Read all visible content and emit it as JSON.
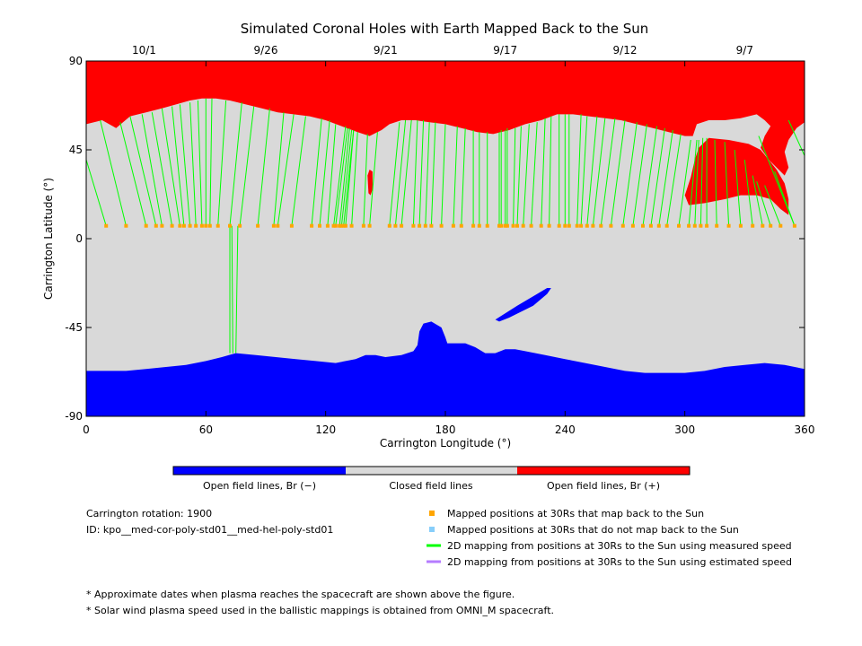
{
  "chart_data": {
    "type": "map",
    "title": "Simulated Coronal Holes with Earth Mapped Back to the Sun",
    "xlabel": "Carrington Longitude (°)",
    "ylabel": "Carrington Latitude (°)",
    "xlim": [
      0,
      360
    ],
    "ylim": [
      -90,
      90
    ],
    "x_ticks": [
      "0",
      "60",
      "120",
      "180",
      "240",
      "300",
      "360"
    ],
    "y_ticks": [
      "90",
      "45",
      "0",
      "-45",
      "-90"
    ],
    "date_ticks": [
      {
        "label": "10/1",
        "lon": 29
      },
      {
        "label": "9/26",
        "lon": 90
      },
      {
        "label": "9/21",
        "lon": 150
      },
      {
        "label": "9/17",
        "lon": 210
      },
      {
        "label": "9/12",
        "lon": 270
      },
      {
        "label": "9/7",
        "lon": 330
      }
    ],
    "colors": {
      "open_negative": "#0000ff",
      "closed": "#d9d9d9",
      "open_positive": "#ff0000",
      "mapped_point": "#ffa500",
      "unmapped_point": "#87cefa",
      "measured_line": "#00ff00",
      "estimated_line": "#b57cff"
    },
    "regions": {
      "north_hole_boundary": [
        [
          0,
          58
        ],
        [
          8,
          60
        ],
        [
          15,
          56
        ],
        [
          22,
          62
        ],
        [
          30,
          64
        ],
        [
          38,
          66
        ],
        [
          45,
          68
        ],
        [
          52,
          70
        ],
        [
          58,
          71
        ],
        [
          65,
          71
        ],
        [
          72,
          70
        ],
        [
          80,
          68
        ],
        [
          88,
          66
        ],
        [
          96,
          64
        ],
        [
          104,
          63
        ],
        [
          112,
          62
        ],
        [
          120,
          60
        ],
        [
          128,
          57
        ],
        [
          136,
          54
        ],
        [
          142,
          52
        ],
        [
          148,
          55
        ],
        [
          152,
          58
        ],
        [
          158,
          60
        ],
        [
          165,
          60
        ],
        [
          172,
          59
        ],
        [
          180,
          58
        ],
        [
          188,
          56
        ],
        [
          196,
          54
        ],
        [
          204,
          53
        ],
        [
          212,
          55
        ],
        [
          220,
          58
        ],
        [
          228,
          60
        ],
        [
          236,
          63
        ],
        [
          244,
          63
        ],
        [
          252,
          62
        ],
        [
          260,
          61
        ],
        [
          268,
          60
        ],
        [
          276,
          58
        ],
        [
          284,
          56
        ],
        [
          292,
          54
        ],
        [
          300,
          52
        ],
        [
          304,
          52
        ],
        [
          306,
          58
        ],
        [
          312,
          60
        ],
        [
          320,
          60
        ],
        [
          328,
          61
        ],
        [
          336,
          63
        ],
        [
          340,
          60
        ],
        [
          343,
          57
        ],
        [
          340,
          52
        ],
        [
          338,
          46
        ],
        [
          342,
          40
        ],
        [
          346,
          36
        ],
        [
          350,
          32
        ],
        [
          352,
          36
        ],
        [
          350,
          44
        ],
        [
          352,
          50
        ],
        [
          356,
          56
        ],
        [
          360,
          59
        ]
      ],
      "north_hole_lobe": [
        [
          305,
          40
        ],
        [
          303,
          31
        ],
        [
          300,
          22
        ],
        [
          302,
          17
        ],
        [
          310,
          18
        ],
        [
          320,
          20
        ],
        [
          328,
          22
        ],
        [
          336,
          22
        ],
        [
          343,
          20
        ],
        [
          348,
          15
        ],
        [
          352,
          12
        ],
        [
          352,
          20
        ],
        [
          350,
          28
        ],
        [
          346,
          35
        ],
        [
          342,
          40
        ],
        [
          338,
          45
        ],
        [
          332,
          48
        ],
        [
          322,
          50
        ],
        [
          312,
          51
        ],
        [
          307,
          46
        ]
      ],
      "north_hole_island": [
        [
          141.5,
          23
        ],
        [
          141,
          32
        ],
        [
          142,
          35
        ],
        [
          143.5,
          34
        ],
        [
          143.5,
          25
        ],
        [
          142.5,
          22
        ]
      ],
      "south_hole_boundary": [
        [
          0,
          -67
        ],
        [
          10,
          -67
        ],
        [
          20,
          -67
        ],
        [
          30,
          -66
        ],
        [
          40,
          -65
        ],
        [
          50,
          -64
        ],
        [
          60,
          -62
        ],
        [
          68,
          -60
        ],
        [
          75,
          -58
        ],
        [
          85,
          -59
        ],
        [
          95,
          -60
        ],
        [
          105,
          -61
        ],
        [
          115,
          -62
        ],
        [
          125,
          -63
        ],
        [
          135,
          -61
        ],
        [
          140,
          -59
        ],
        [
          145,
          -59
        ],
        [
          150,
          -60
        ],
        [
          158,
          -59
        ],
        [
          164,
          -57
        ],
        [
          166,
          -54
        ],
        [
          167,
          -47
        ],
        [
          169,
          -43
        ],
        [
          173,
          -42
        ],
        [
          178,
          -45
        ],
        [
          180,
          -50
        ],
        [
          181,
          -53
        ],
        [
          186,
          -53
        ],
        [
          190,
          -53
        ],
        [
          195,
          -55
        ],
        [
          200,
          -58
        ],
        [
          205,
          -58
        ],
        [
          210,
          -56
        ],
        [
          215,
          -56
        ],
        [
          220,
          -57
        ],
        [
          230,
          -59
        ],
        [
          240,
          -61
        ],
        [
          250,
          -63
        ],
        [
          260,
          -65
        ],
        [
          270,
          -67
        ],
        [
          280,
          -68
        ],
        [
          290,
          -68
        ],
        [
          300,
          -68
        ],
        [
          310,
          -67
        ],
        [
          320,
          -65
        ],
        [
          330,
          -64
        ],
        [
          340,
          -63
        ],
        [
          350,
          -64
        ],
        [
          360,
          -66
        ]
      ],
      "south_hole_streak": [
        [
          205,
          -41
        ],
        [
          216,
          -34
        ],
        [
          226,
          -28
        ],
        [
          231,
          -25
        ],
        [
          233,
          -25
        ],
        [
          231,
          -28
        ],
        [
          224,
          -34
        ],
        [
          212,
          -40
        ],
        [
          207,
          -42
        ]
      ]
    },
    "footpoint_lat": 6.5,
    "footpoints_lon": [
      10,
      20,
      30,
      35,
      38,
      43,
      47,
      49,
      52,
      55,
      58,
      60,
      62,
      66,
      72,
      77,
      86,
      94,
      96,
      103,
      113,
      117,
      121,
      124,
      125,
      127,
      128,
      129,
      130,
      133,
      139,
      142,
      152,
      155,
      158,
      164,
      167,
      170,
      173,
      178,
      184,
      188,
      194,
      197,
      201,
      207,
      208,
      210,
      211,
      214,
      216,
      219,
      223,
      228,
      232,
      237,
      240,
      242,
      246,
      248,
      251,
      254,
      258,
      263,
      269,
      274,
      279,
      283,
      287,
      291,
      297,
      302,
      305,
      308,
      311,
      316,
      322,
      328,
      334,
      339,
      343,
      348,
      355
    ],
    "measured_lines": [
      {
        "x0": 10,
        "y0": 6.5,
        "x1": 0,
        "y1": 40
      },
      {
        "x0": 20,
        "y0": 6.5,
        "x1": 7,
        "y1": 60
      },
      {
        "x0": 30,
        "y0": 6.5,
        "x1": 17,
        "y1": 59
      },
      {
        "x0": 35,
        "y0": 6.5,
        "x1": 22,
        "y1": 62
      },
      {
        "x0": 38,
        "y0": 6.5,
        "x1": 28,
        "y1": 63
      },
      {
        "x0": 43,
        "y0": 6.5,
        "x1": 33,
        "y1": 64
      },
      {
        "x0": 47,
        "y0": 6.5,
        "x1": 38,
        "y1": 66
      },
      {
        "x0": 49,
        "y0": 6.5,
        "x1": 43,
        "y1": 67
      },
      {
        "x0": 52,
        "y0": 6.5,
        "x1": 47,
        "y1": 68
      },
      {
        "x0": 55,
        "y0": 6.5,
        "x1": 52,
        "y1": 69
      },
      {
        "x0": 58,
        "y0": 6.5,
        "x1": 56,
        "y1": 70
      },
      {
        "x0": 60,
        "y0": 6.5,
        "x1": 60,
        "y1": 71
      },
      {
        "x0": 62,
        "y0": 6.5,
        "x1": 63,
        "y1": 71
      },
      {
        "x0": 66,
        "y0": 6.5,
        "x1": 70,
        "y1": 70
      },
      {
        "x0": 72,
        "y0": 6.5,
        "x1": 78,
        "y1": 69
      },
      {
        "x0": 77,
        "y0": 6.5,
        "x1": 84,
        "y1": 67
      },
      {
        "x0": 86,
        "y0": 6.5,
        "x1": 92,
        "y1": 66
      },
      {
        "x0": 94,
        "y0": 6.5,
        "x1": 99,
        "y1": 64
      },
      {
        "x0": 96,
        "y0": 6.5,
        "x1": 104,
        "y1": 63
      },
      {
        "x0": 103,
        "y0": 6.5,
        "x1": 110,
        "y1": 62
      },
      {
        "x0": 113,
        "y0": 6.5,
        "x1": 118,
        "y1": 61
      },
      {
        "x0": 117,
        "y0": 6.5,
        "x1": 122,
        "y1": 60
      },
      {
        "x0": 121,
        "y0": 6.5,
        "x1": 125,
        "y1": 58
      },
      {
        "x0": 124,
        "y0": 6.5,
        "x1": 130,
        "y1": 57
      },
      {
        "x0": 125,
        "y0": 6.5,
        "x1": 131,
        "y1": 56
      },
      {
        "x0": 127,
        "y0": 6.5,
        "x1": 132,
        "y1": 56
      },
      {
        "x0": 128,
        "y0": 6.5,
        "x1": 133,
        "y1": 55
      },
      {
        "x0": 129,
        "y0": 6.5,
        "x1": 134,
        "y1": 55
      },
      {
        "x0": 130,
        "y0": 6.5,
        "x1": 134,
        "y1": 55
      },
      {
        "x0": 133,
        "y0": 6.5,
        "x1": 136,
        "y1": 54
      },
      {
        "x0": 139,
        "y0": 6.5,
        "x1": 141,
        "y1": 53
      },
      {
        "x0": 142,
        "y0": 6.5,
        "x1": 146,
        "y1": 54
      },
      {
        "x0": 152,
        "y0": 6.5,
        "x1": 157,
        "y1": 59
      },
      {
        "x0": 155,
        "y0": 6.5,
        "x1": 160,
        "y1": 60
      },
      {
        "x0": 158,
        "y0": 6.5,
        "x1": 163,
        "y1": 60
      },
      {
        "x0": 164,
        "y0": 6.5,
        "x1": 166,
        "y1": 60
      },
      {
        "x0": 167,
        "y0": 6.5,
        "x1": 169,
        "y1": 60
      },
      {
        "x0": 170,
        "y0": 6.5,
        "x1": 172,
        "y1": 59
      },
      {
        "x0": 173,
        "y0": 6.5,
        "x1": 175,
        "y1": 59
      },
      {
        "x0": 178,
        "y0": 6.5,
        "x1": 180,
        "y1": 58
      },
      {
        "x0": 184,
        "y0": 6.5,
        "x1": 186,
        "y1": 57
      },
      {
        "x0": 188,
        "y0": 6.5,
        "x1": 190,
        "y1": 56
      },
      {
        "x0": 194,
        "y0": 6.5,
        "x1": 194,
        "y1": 55
      },
      {
        "x0": 197,
        "y0": 6.5,
        "x1": 197,
        "y1": 54
      },
      {
        "x0": 201,
        "y0": 6.5,
        "x1": 201,
        "y1": 54
      },
      {
        "x0": 207,
        "y0": 6.5,
        "x1": 207,
        "y1": 54
      },
      {
        "x0": 208,
        "y0": 6.5,
        "x1": 208,
        "y1": 55
      },
      {
        "x0": 210,
        "y0": 6.5,
        "x1": 210,
        "y1": 55
      },
      {
        "x0": 211,
        "y0": 6.5,
        "x1": 211,
        "y1": 56
      },
      {
        "x0": 214,
        "y0": 6.5,
        "x1": 215,
        "y1": 56
      },
      {
        "x0": 216,
        "y0": 6.5,
        "x1": 218,
        "y1": 57
      },
      {
        "x0": 219,
        "y0": 6.5,
        "x1": 222,
        "y1": 58
      },
      {
        "x0": 223,
        "y0": 6.5,
        "x1": 226,
        "y1": 59
      },
      {
        "x0": 228,
        "y0": 6.5,
        "x1": 230,
        "y1": 61
      },
      {
        "x0": 232,
        "y0": 6.5,
        "x1": 233,
        "y1": 62
      },
      {
        "x0": 237,
        "y0": 6.5,
        "x1": 237,
        "y1": 63
      },
      {
        "x0": 240,
        "y0": 6.5,
        "x1": 240,
        "y1": 63
      },
      {
        "x0": 242,
        "y0": 6.5,
        "x1": 242,
        "y1": 63
      },
      {
        "x0": 246,
        "y0": 6.5,
        "x1": 248,
        "y1": 63
      },
      {
        "x0": 248,
        "y0": 6.5,
        "x1": 251,
        "y1": 62
      },
      {
        "x0": 251,
        "y0": 6.5,
        "x1": 256,
        "y1": 62
      },
      {
        "x0": 254,
        "y0": 6.5,
        "x1": 260,
        "y1": 61
      },
      {
        "x0": 258,
        "y0": 6.5,
        "x1": 265,
        "y1": 61
      },
      {
        "x0": 263,
        "y0": 6.5,
        "x1": 270,
        "y1": 60
      },
      {
        "x0": 269,
        "y0": 6.5,
        "x1": 276,
        "y1": 59
      },
      {
        "x0": 274,
        "y0": 6.5,
        "x1": 281,
        "y1": 58
      },
      {
        "x0": 279,
        "y0": 6.5,
        "x1": 286,
        "y1": 57
      },
      {
        "x0": 283,
        "y0": 6.5,
        "x1": 290,
        "y1": 56
      },
      {
        "x0": 287,
        "y0": 6.5,
        "x1": 294,
        "y1": 55
      },
      {
        "x0": 291,
        "y0": 6.5,
        "x1": 298,
        "y1": 53
      },
      {
        "x0": 297,
        "y0": 6.5,
        "x1": 303,
        "y1": 50
      },
      {
        "x0": 302,
        "y0": 6.5,
        "x1": 306,
        "y1": 50
      },
      {
        "x0": 305,
        "y0": 6.5,
        "x1": 307,
        "y1": 50
      },
      {
        "x0": 308,
        "y0": 6.5,
        "x1": 309,
        "y1": 51
      },
      {
        "x0": 311,
        "y0": 6.5,
        "x1": 311,
        "y1": 51
      },
      {
        "x0": 316,
        "y0": 6.5,
        "x1": 315,
        "y1": 50
      },
      {
        "x0": 322,
        "y0": 6.5,
        "x1": 320,
        "y1": 49
      },
      {
        "x0": 328,
        "y0": 6.5,
        "x1": 325,
        "y1": 45
      },
      {
        "x0": 334,
        "y0": 6.5,
        "x1": 330,
        "y1": 40
      },
      {
        "x0": 339,
        "y0": 6.5,
        "x1": 334,
        "y1": 32
      },
      {
        "x0": 343,
        "y0": 6.5,
        "x1": 336,
        "y1": 29
      },
      {
        "x0": 348,
        "y0": 6.5,
        "x1": 340,
        "y1": 27
      },
      {
        "x0": 355,
        "y0": 6.5,
        "x1": 345,
        "y1": 34
      },
      {
        "x0": 355,
        "y0": 6.5,
        "x1": 337,
        "y1": 52
      },
      {
        "x0": 360,
        "y0": 42,
        "x1": 352,
        "y1": 60
      },
      {
        "x0": 72,
        "y0": 6.5,
        "x1": 72,
        "y1": -58
      },
      {
        "x0": 73,
        "y0": 6.5,
        "x1": 73.5,
        "y1": -58
      },
      {
        "x0": 76,
        "y0": 6.5,
        "x1": 75,
        "y1": -58
      }
    ]
  },
  "colorbar": {
    "labels": [
      "Open field lines, Br (−)",
      "Closed field lines",
      "Open field lines, Br (+)"
    ]
  },
  "info": {
    "rotation": "Carrington rotation: 1900",
    "id": "ID: kpo__med-cor-poly-std01__med-hel-poly-std01"
  },
  "legend": [
    {
      "kind": "square",
      "color_key": "mapped_point",
      "label": "Mapped positions at 30Rs that map back to the Sun"
    },
    {
      "kind": "square",
      "color_key": "unmapped_point",
      "label": "Mapped positions at 30Rs that do not map back to the Sun"
    },
    {
      "kind": "line",
      "color_key": "measured_line",
      "label": "2D mapping from positions at 30Rs to the Sun using measured speed"
    },
    {
      "kind": "line",
      "color_key": "estimated_line",
      "label": "2D mapping from positions at 30Rs to the Sun using estimated speed"
    }
  ],
  "notes": [
    "* Approximate dates when plasma reaches the spacecraft are shown above the figure.",
    "* Solar wind plasma speed used in the ballistic mappings is obtained from OMNI_M spacecraft."
  ]
}
